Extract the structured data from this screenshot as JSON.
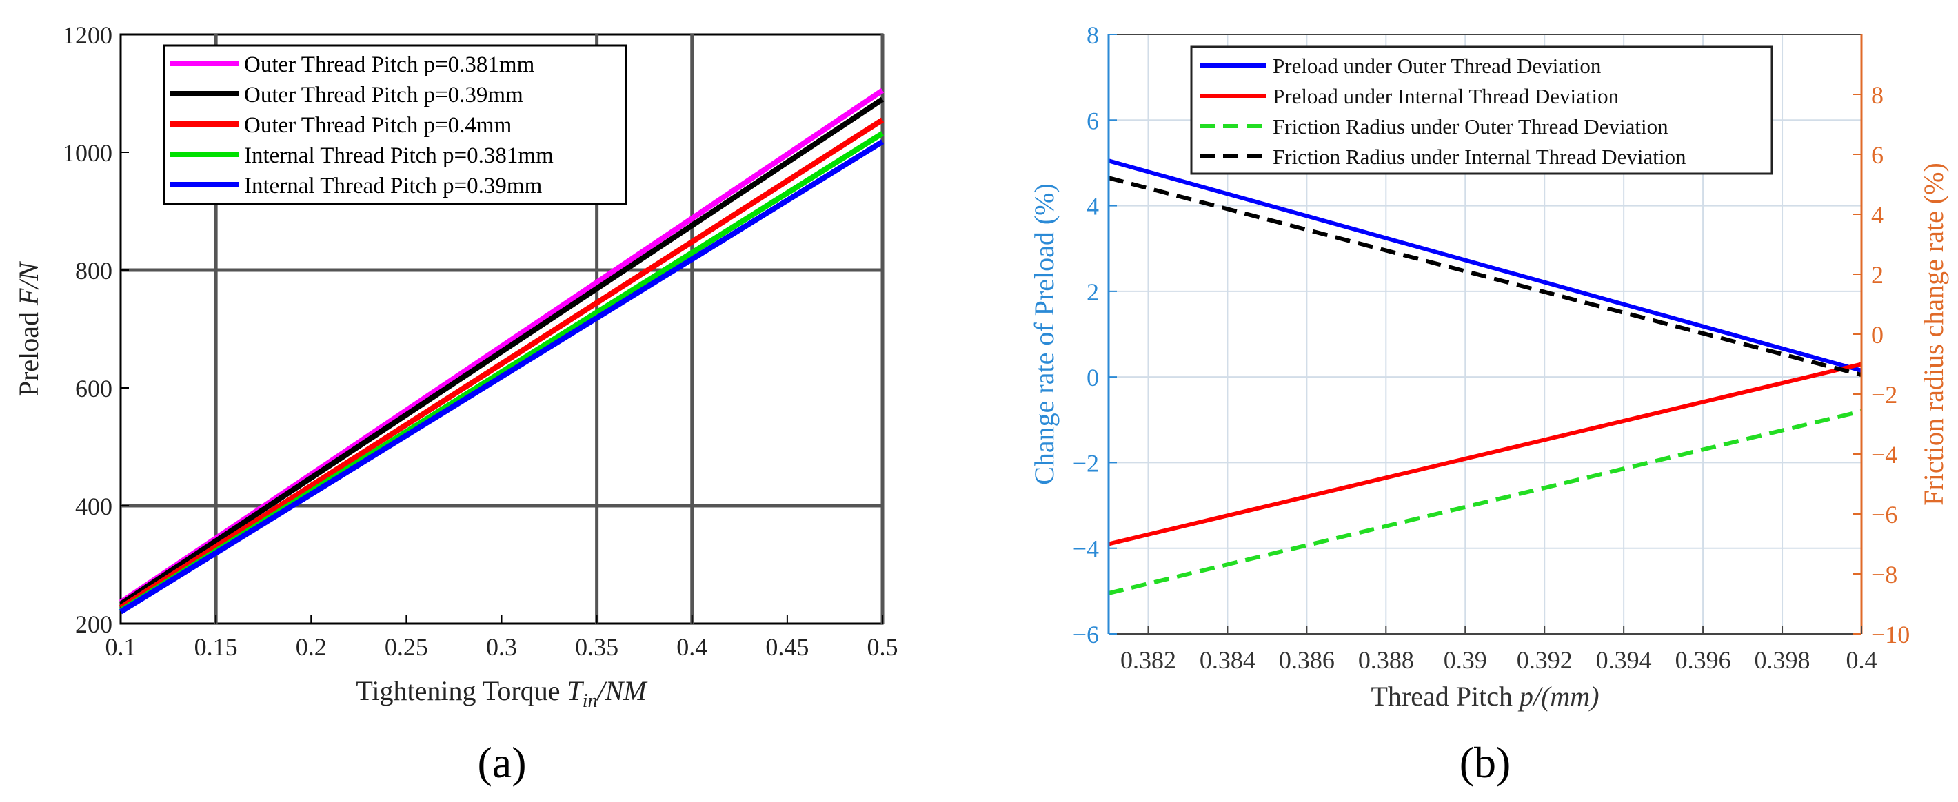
{
  "chart_data": [
    {
      "type": "line",
      "panel_label": "(a)",
      "xlabel_prefix": "Tightening Torque ",
      "xlabel_var": "T",
      "xlabel_sub": "in",
      "xlabel_unit": "/NM",
      "ylabel_prefix": "Preload  ",
      "ylabel_var": "F/N",
      "xlim": [
        0.1,
        0.5
      ],
      "ylim": [
        200,
        1200
      ],
      "xticks": [
        0.1,
        0.15,
        0.2,
        0.25,
        0.3,
        0.35,
        0.4,
        0.45,
        0.5
      ],
      "xtick_labels": [
        "0.1",
        "0.15",
        "0.2",
        "0.25",
        "0.3",
        "0.35",
        "0.4",
        "0.45",
        "0.5"
      ],
      "yticks": [
        200,
        400,
        600,
        800,
        1000,
        1200
      ],
      "ytick_labels": [
        "200",
        "400",
        "600",
        "800",
        "1000",
        "1200"
      ],
      "grid_x": [
        0.15,
        0.35,
        0.4,
        0.5
      ],
      "grid_y": [
        400,
        800
      ],
      "legend_position": "top-left",
      "series": [
        {
          "name": "Outer Thread Pitch p=0.381mm",
          "color": "#ff00ff",
          "x": [
            0.1,
            0.5
          ],
          "y": [
            236,
            1105
          ]
        },
        {
          "name": "Outer Thread Pitch p=0.39mm",
          "color": "#000000",
          "x": [
            0.1,
            0.5
          ],
          "y": [
            233,
            1090
          ]
        },
        {
          "name": "Outer Thread Pitch p=0.4mm",
          "color": "#ff0000",
          "x": [
            0.1,
            0.5
          ],
          "y": [
            227,
            1055
          ]
        },
        {
          "name": "Internal Thread Pitch p=0.381mm",
          "color": "#00e000",
          "x": [
            0.1,
            0.5
          ],
          "y": [
            222,
            1032
          ]
        },
        {
          "name": "Internal Thread Pitch p=0.39mm",
          "color": "#0000ff",
          "x": [
            0.1,
            0.5
          ],
          "y": [
            220,
            1018
          ]
        }
      ]
    },
    {
      "type": "line",
      "panel_label": "(b)",
      "xlabel_prefix": "Thread Pitch ",
      "xlabel_var": "p/(mm)",
      "ylabel_left": "Change rate of Preload  (%)",
      "ylabel_right": "Friction radius change rate (%)",
      "left_axis_color": "#2b8ad6",
      "right_axis_color": "#e06a28",
      "xlim": [
        0.381,
        0.4
      ],
      "ylim_left": [
        -6,
        8
      ],
      "ylim_right": [
        -10,
        10
      ],
      "xticks": [
        0.382,
        0.384,
        0.386,
        0.388,
        0.39,
        0.392,
        0.394,
        0.396,
        0.398,
        0.4
      ],
      "xtick_labels": [
        "0.382",
        "0.384",
        "0.386",
        "0.388",
        "0.39",
        "0.392",
        "0.394",
        "0.396",
        "0.398",
        "0.4"
      ],
      "yticks_left": [
        -6,
        -4,
        -2,
        0,
        2,
        4,
        6,
        8
      ],
      "ytick_labels_left": [
        "−6",
        "−4",
        "−2",
        "0",
        "2",
        "4",
        "6",
        "8"
      ],
      "yticks_right": [
        -10,
        -8,
        -6,
        -4,
        -2,
        0,
        2,
        4,
        6,
        8
      ],
      "ytick_labels_right": [
        "−10",
        "−8",
        "−6",
        "−4",
        "−2",
        "0",
        "2",
        "4",
        "6",
        "8"
      ],
      "grid": true,
      "legend_position": "top",
      "series": [
        {
          "name": "Preload under Outer Thread Deviation",
          "color": "#0000ff",
          "dash": false,
          "axis": "left",
          "x": [
            0.381,
            0.4
          ],
          "y": [
            5.05,
            0.15
          ]
        },
        {
          "name": "Preload under Internal Thread Deviation",
          "color": "#ff0000",
          "dash": false,
          "axis": "left",
          "x": [
            0.381,
            0.4
          ],
          "y": [
            -3.9,
            0.3
          ]
        },
        {
          "name": "Friction Radius under Outer Thread Deviation",
          "color": "#22dd22",
          "dash": true,
          "axis": "left",
          "x": [
            0.381,
            0.4
          ],
          "y": [
            -5.05,
            -0.8
          ]
        },
        {
          "name": "Friction Radius under Internal Thread Deviation",
          "color": "#000000",
          "dash": true,
          "axis": "left",
          "x": [
            0.381,
            0.4
          ],
          "y": [
            4.65,
            0.05
          ]
        }
      ]
    }
  ]
}
